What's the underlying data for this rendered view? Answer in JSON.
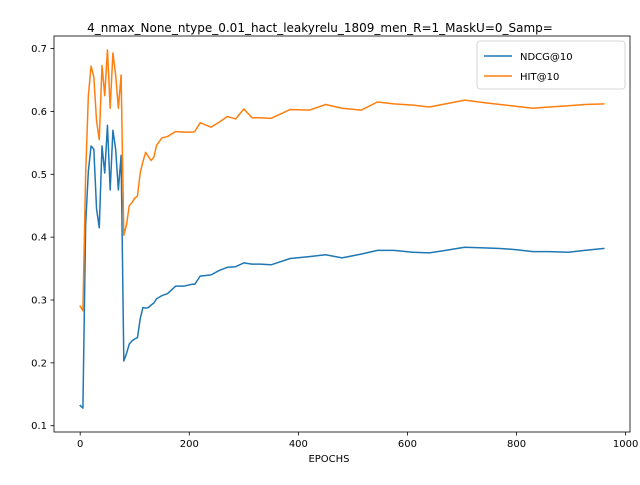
{
  "chart_data": {
    "type": "line",
    "title": "4_nmax_None_ntype_0.01_hact_leakyrelu_1809_men_R=1_MaskU=0_Samp=",
    "xlabel": "EPOCHS",
    "ylabel": "",
    "xlim": [
      -48,
      1008
    ],
    "ylim": [
      0.09,
      0.72
    ],
    "x_ticks": [
      0,
      200,
      400,
      600,
      800,
      1000
    ],
    "y_ticks": [
      0.1,
      0.2,
      0.3,
      0.4,
      0.5,
      0.6,
      0.7
    ],
    "x_tick_labels": [
      "0",
      "200",
      "400",
      "600",
      "800",
      "1000"
    ],
    "y_tick_labels": [
      "0.1",
      "0.2",
      "0.3",
      "0.4",
      "0.5",
      "0.6",
      "0.7"
    ],
    "grid": false,
    "legend_position": "top-right",
    "series": [
      {
        "name": "NDCG@10",
        "color": "#1f77b4",
        "x": [
          0,
          5,
          10,
          15,
          20,
          25,
          30,
          35,
          40,
          45,
          50,
          55,
          60,
          65,
          70,
          75,
          80,
          85,
          90,
          95,
          100,
          105,
          110,
          115,
          120,
          125,
          130,
          135,
          140,
          150,
          160,
          175,
          190,
          205,
          210,
          220,
          240,
          255,
          270,
          285,
          300,
          315,
          330,
          350,
          385,
          420,
          450,
          480,
          515,
          545,
          575,
          610,
          640,
          670,
          705,
          740,
          770,
          800,
          830,
          860,
          895,
          925,
          960
        ],
        "y": [
          0.132,
          0.128,
          0.42,
          0.505,
          0.545,
          0.54,
          0.445,
          0.415,
          0.545,
          0.502,
          0.578,
          0.475,
          0.57,
          0.54,
          0.475,
          0.53,
          0.203,
          0.215,
          0.23,
          0.235,
          0.238,
          0.24,
          0.27,
          0.288,
          0.287,
          0.288,
          0.292,
          0.295,
          0.302,
          0.307,
          0.31,
          0.322,
          0.322,
          0.325,
          0.325,
          0.338,
          0.34,
          0.347,
          0.352,
          0.353,
          0.359,
          0.357,
          0.357,
          0.356,
          0.366,
          0.369,
          0.372,
          0.367,
          0.373,
          0.379,
          0.379,
          0.376,
          0.375,
          0.379,
          0.384,
          0.383,
          0.382,
          0.38,
          0.377,
          0.377,
          0.376,
          0.379,
          0.382
        ]
      },
      {
        "name": "HIT@10",
        "color": "#ff7f0e",
        "x": [
          0,
          5,
          10,
          15,
          20,
          25,
          30,
          35,
          40,
          45,
          50,
          55,
          60,
          65,
          70,
          75,
          80,
          85,
          90,
          95,
          100,
          105,
          110,
          115,
          120,
          125,
          130,
          135,
          140,
          150,
          160,
          175,
          190,
          205,
          210,
          220,
          240,
          255,
          270,
          285,
          300,
          315,
          330,
          350,
          385,
          420,
          450,
          480,
          515,
          545,
          575,
          610,
          640,
          670,
          705,
          740,
          770,
          800,
          830,
          860,
          895,
          925,
          960
        ],
        "y": [
          0.29,
          0.283,
          0.5,
          0.625,
          0.672,
          0.655,
          0.585,
          0.555,
          0.673,
          0.625,
          0.698,
          0.605,
          0.693,
          0.658,
          0.605,
          0.658,
          0.403,
          0.42,
          0.45,
          0.455,
          0.462,
          0.465,
          0.502,
          0.52,
          0.535,
          0.528,
          0.522,
          0.527,
          0.546,
          0.558,
          0.56,
          0.568,
          0.567,
          0.567,
          0.568,
          0.582,
          0.575,
          0.583,
          0.592,
          0.588,
          0.604,
          0.59,
          0.59,
          0.589,
          0.603,
          0.602,
          0.611,
          0.605,
          0.602,
          0.615,
          0.612,
          0.61,
          0.607,
          0.612,
          0.618,
          0.614,
          0.611,
          0.608,
          0.605,
          0.607,
          0.609,
          0.611,
          0.612
        ]
      }
    ]
  }
}
